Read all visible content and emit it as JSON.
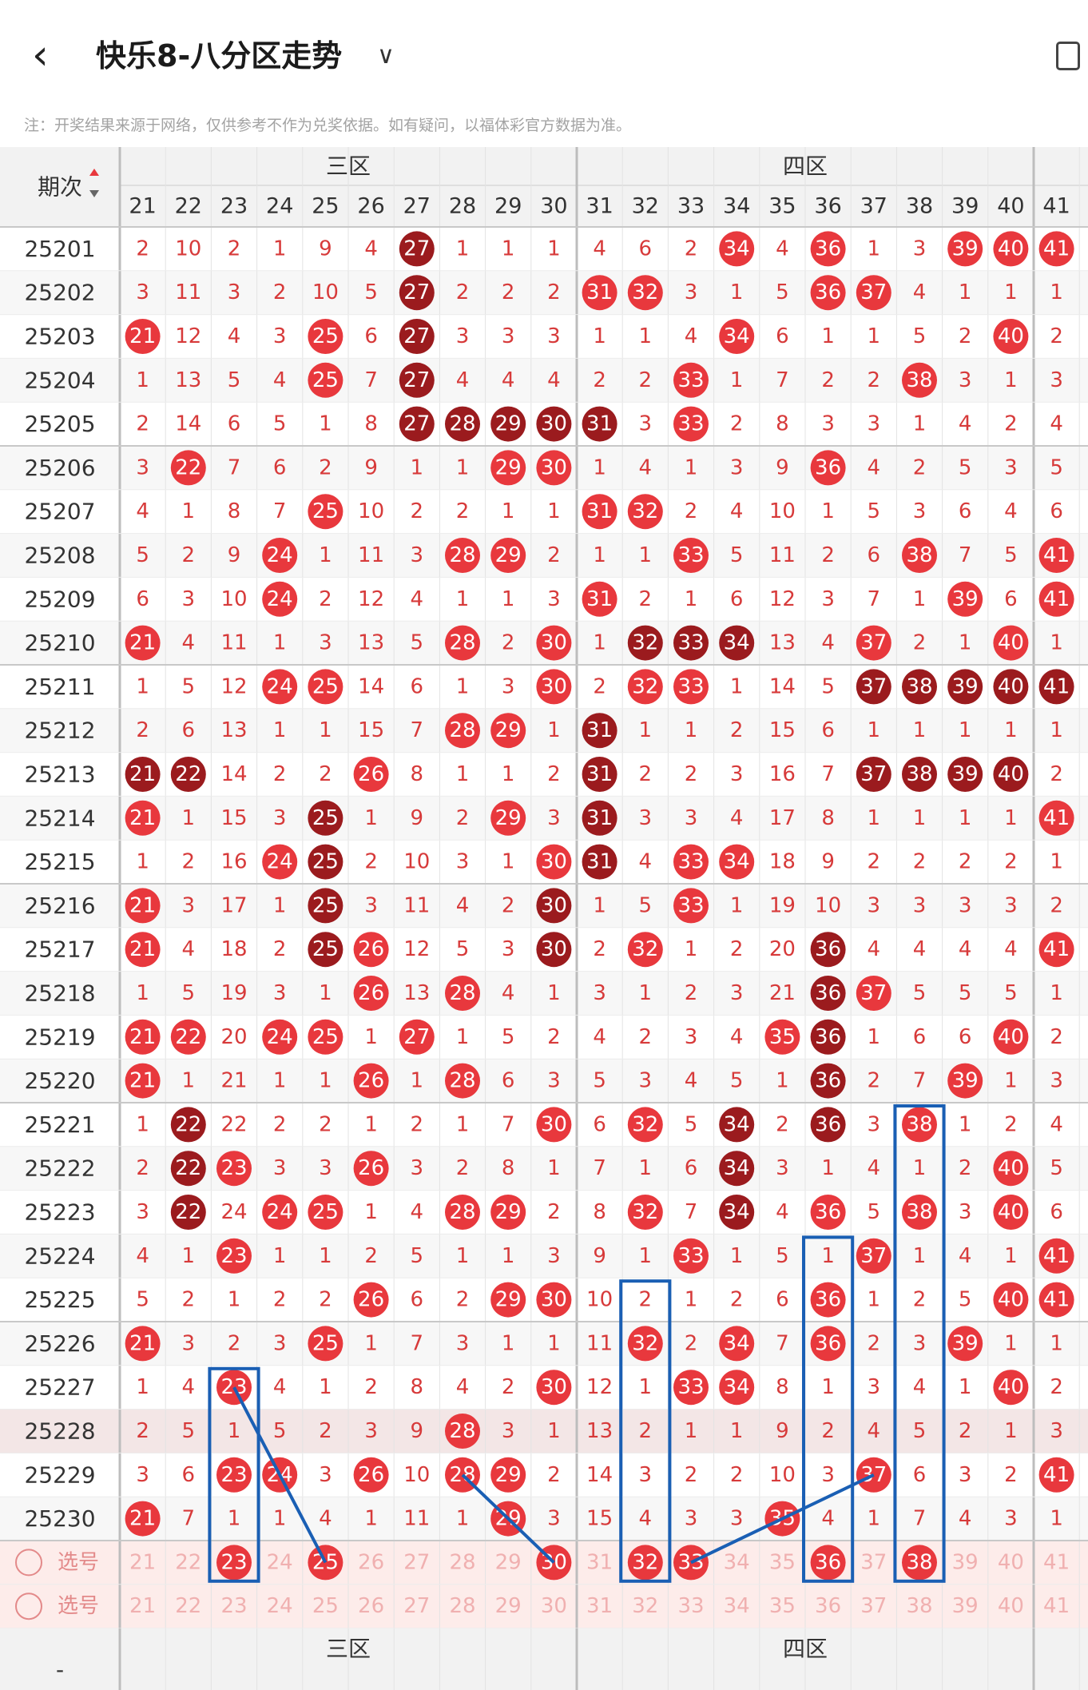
{
  "header": {
    "back_icon": "chevron-left-icon",
    "title": "快乐8-八分区走势",
    "dropdown_icon": "chevron-down-icon",
    "action_icon": "phone-rotate-icon",
    "notice": "注：开奖结果来源于网络，仅供参考不作为兑奖依据。如有疑问，以福体彩官方数据为准。"
  },
  "table": {
    "period_header": "期次",
    "sort_icon": "sort-up-down-icon",
    "zones": [
      "三区",
      "四区"
    ],
    "columns": [
      21,
      22,
      23,
      24,
      25,
      26,
      27,
      28,
      29,
      30,
      31,
      32,
      33,
      34,
      35,
      36,
      37,
      38,
      39,
      40,
      41
    ],
    "rows": [
      {
        "period": "25201",
        "values": [
          2,
          10,
          2,
          1,
          9,
          4,
          27,
          1,
          1,
          1,
          4,
          6,
          2,
          34,
          4,
          36,
          1,
          3,
          39,
          40,
          41
        ]
      },
      {
        "period": "25202",
        "values": [
          3,
          11,
          3,
          2,
          10,
          5,
          27,
          2,
          2,
          2,
          31,
          32,
          3,
          1,
          5,
          36,
          37,
          4,
          1,
          1,
          1
        ]
      },
      {
        "period": "25203",
        "values": [
          21,
          12,
          4,
          3,
          25,
          6,
          27,
          3,
          3,
          3,
          1,
          1,
          4,
          34,
          6,
          1,
          1,
          5,
          2,
          40,
          2
        ]
      },
      {
        "period": "25204",
        "values": [
          1,
          13,
          5,
          4,
          25,
          7,
          27,
          4,
          4,
          4,
          2,
          2,
          33,
          1,
          7,
          2,
          2,
          38,
          3,
          1,
          3
        ]
      },
      {
        "period": "25205",
        "values": [
          2,
          14,
          6,
          5,
          1,
          8,
          27,
          28,
          29,
          30,
          31,
          3,
          33,
          2,
          8,
          3,
          3,
          1,
          4,
          2,
          4
        ]
      },
      {
        "period": "25206",
        "values": [
          3,
          22,
          7,
          6,
          2,
          9,
          1,
          1,
          29,
          30,
          1,
          4,
          1,
          3,
          9,
          36,
          4,
          2,
          5,
          3,
          5
        ]
      },
      {
        "period": "25207",
        "values": [
          4,
          1,
          8,
          7,
          25,
          10,
          2,
          2,
          1,
          1,
          31,
          32,
          2,
          4,
          10,
          1,
          5,
          3,
          6,
          4,
          6
        ]
      },
      {
        "period": "25208",
        "values": [
          5,
          2,
          9,
          24,
          1,
          11,
          3,
          28,
          29,
          2,
          1,
          1,
          33,
          5,
          11,
          2,
          6,
          38,
          7,
          5,
          41
        ]
      },
      {
        "period": "25209",
        "values": [
          6,
          3,
          10,
          24,
          2,
          12,
          4,
          1,
          1,
          3,
          31,
          2,
          1,
          6,
          12,
          3,
          7,
          1,
          39,
          6,
          41
        ]
      },
      {
        "period": "25210",
        "values": [
          21,
          4,
          11,
          1,
          3,
          13,
          5,
          28,
          2,
          30,
          1,
          32,
          33,
          34,
          13,
          4,
          37,
          2,
          1,
          40,
          1
        ]
      },
      {
        "period": "25211",
        "values": [
          1,
          5,
          12,
          24,
          25,
          14,
          6,
          1,
          3,
          30,
          2,
          32,
          33,
          1,
          14,
          5,
          37,
          38,
          39,
          40,
          41
        ]
      },
      {
        "period": "25212",
        "values": [
          2,
          6,
          13,
          1,
          1,
          15,
          7,
          28,
          29,
          1,
          31,
          1,
          1,
          2,
          15,
          6,
          1,
          1,
          1,
          1,
          1
        ]
      },
      {
        "period": "25213",
        "values": [
          21,
          22,
          14,
          2,
          2,
          26,
          8,
          1,
          1,
          2,
          31,
          2,
          2,
          3,
          16,
          7,
          37,
          38,
          39,
          40,
          2
        ]
      },
      {
        "period": "25214",
        "values": [
          21,
          1,
          15,
          3,
          25,
          1,
          9,
          2,
          29,
          3,
          31,
          3,
          3,
          4,
          17,
          8,
          1,
          1,
          1,
          1,
          41
        ]
      },
      {
        "period": "25215",
        "values": [
          1,
          2,
          16,
          24,
          25,
          2,
          10,
          3,
          1,
          30,
          31,
          4,
          33,
          34,
          18,
          9,
          2,
          2,
          2,
          2,
          1
        ]
      },
      {
        "period": "25216",
        "values": [
          21,
          3,
          17,
          1,
          25,
          3,
          11,
          4,
          2,
          30,
          1,
          5,
          33,
          1,
          19,
          10,
          3,
          3,
          3,
          3,
          2
        ]
      },
      {
        "period": "25217",
        "values": [
          21,
          4,
          18,
          2,
          25,
          26,
          12,
          5,
          3,
          30,
          2,
          32,
          1,
          2,
          20,
          36,
          4,
          4,
          4,
          4,
          41
        ]
      },
      {
        "period": "25218",
        "values": [
          1,
          5,
          19,
          3,
          1,
          26,
          13,
          28,
          4,
          1,
          3,
          1,
          2,
          3,
          21,
          36,
          37,
          5,
          5,
          5,
          1
        ]
      },
      {
        "period": "25219",
        "values": [
          21,
          22,
          20,
          24,
          25,
          1,
          27,
          1,
          5,
          2,
          4,
          2,
          3,
          4,
          35,
          36,
          1,
          6,
          6,
          40,
          2
        ]
      },
      {
        "period": "25220",
        "values": [
          21,
          1,
          21,
          1,
          1,
          26,
          1,
          28,
          6,
          3,
          5,
          3,
          4,
          5,
          1,
          36,
          2,
          7,
          39,
          1,
          3
        ]
      },
      {
        "period": "25221",
        "values": [
          1,
          22,
          22,
          2,
          2,
          1,
          2,
          1,
          7,
          30,
          6,
          32,
          5,
          34,
          2,
          36,
          3,
          38,
          1,
          2,
          4
        ]
      },
      {
        "period": "25222",
        "values": [
          2,
          22,
          23,
          3,
          3,
          26,
          3,
          2,
          8,
          1,
          7,
          1,
          6,
          34,
          3,
          1,
          4,
          1,
          2,
          40,
          5
        ]
      },
      {
        "period": "25223",
        "values": [
          3,
          22,
          24,
          24,
          25,
          1,
          4,
          28,
          29,
          2,
          8,
          32,
          7,
          34,
          4,
          36,
          5,
          38,
          3,
          40,
          6
        ]
      },
      {
        "period": "25224",
        "values": [
          4,
          1,
          23,
          1,
          1,
          2,
          5,
          1,
          1,
          3,
          9,
          1,
          33,
          1,
          5,
          1,
          37,
          1,
          4,
          1,
          41
        ]
      },
      {
        "period": "25225",
        "values": [
          5,
          2,
          1,
          2,
          2,
          26,
          6,
          2,
          29,
          30,
          10,
          2,
          1,
          2,
          6,
          36,
          1,
          2,
          5,
          40,
          41
        ]
      },
      {
        "period": "25226",
        "values": [
          21,
          3,
          2,
          3,
          25,
          1,
          7,
          3,
          1,
          1,
          11,
          32,
          2,
          34,
          7,
          36,
          2,
          3,
          39,
          1,
          1
        ]
      },
      {
        "period": "25227",
        "values": [
          1,
          4,
          23,
          4,
          1,
          2,
          8,
          4,
          2,
          30,
          12,
          1,
          33,
          34,
          8,
          1,
          3,
          4,
          1,
          40,
          2
        ]
      },
      {
        "period": "25228",
        "values": [
          2,
          5,
          1,
          5,
          2,
          3,
          9,
          28,
          3,
          1,
          13,
          2,
          1,
          1,
          9,
          2,
          4,
          5,
          2,
          1,
          3
        ]
      },
      {
        "period": "25229",
        "values": [
          3,
          6,
          23,
          24,
          3,
          26,
          10,
          28,
          29,
          2,
          14,
          3,
          2,
          2,
          10,
          3,
          37,
          6,
          3,
          2,
          41
        ]
      },
      {
        "period": "25230",
        "values": [
          21,
          7,
          1,
          1,
          4,
          1,
          11,
          1,
          29,
          3,
          15,
          4,
          3,
          3,
          35,
          4,
          1,
          7,
          4,
          3,
          1
        ]
      }
    ],
    "selection_rows": [
      {
        "label": "选号",
        "selected": [
          23,
          25,
          30,
          32,
          33,
          36,
          38
        ]
      },
      {
        "label": "选号",
        "selected": []
      }
    ],
    "footer_period": "-",
    "dark_circle_numbers": [
      [
        27
      ],
      [
        27
      ],
      [
        27
      ],
      [
        27
      ],
      [
        27,
        28,
        29,
        30,
        31
      ],
      [],
      [],
      [],
      [],
      [
        32,
        33,
        34
      ],
      [
        37,
        38,
        39,
        40,
        41
      ],
      [
        31
      ],
      [
        21,
        22,
        31,
        37,
        38,
        39,
        40
      ],
      [
        25,
        31
      ],
      [
        25,
        31
      ],
      [
        25,
        30
      ],
      [
        25,
        30,
        36
      ],
      [
        36
      ],
      [
        36
      ],
      [
        36
      ],
      [
        22,
        34,
        36
      ],
      [
        22,
        34
      ],
      [
        22,
        34
      ],
      [],
      [],
      [],
      [],
      [],
      [],
      []
    ],
    "colors": {
      "red": "#e8383d",
      "dark_red": "#9b1b1e",
      "text_red": "#d73a3a",
      "blue_line": "#1a5fb4",
      "header_bg": "#f2f2f2",
      "select_bg": "#fdecea"
    }
  }
}
